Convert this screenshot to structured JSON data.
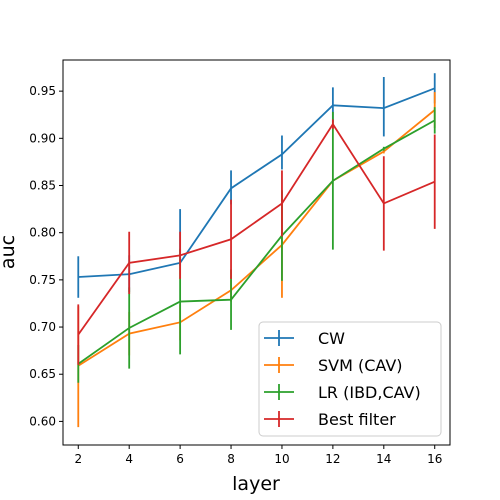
{
  "chart_data": {
    "type": "line",
    "title": "",
    "xlabel": "layer",
    "ylabel": "auc",
    "x": [
      2,
      4,
      6,
      8,
      10,
      12,
      14,
      16
    ],
    "xticks": [
      "2",
      "4",
      "6",
      "8",
      "10",
      "12",
      "14",
      "16"
    ],
    "yticks": [
      "0.60",
      "0.65",
      "0.70",
      "0.75",
      "0.80",
      "0.85",
      "0.90",
      "0.95"
    ],
    "xlim": [
      1.4,
      16.6
    ],
    "ylim": [
      0.575,
      0.983
    ],
    "grid": false,
    "legend_position": "lower-right",
    "error_bars": true,
    "series": [
      {
        "name": "CW",
        "color": "#1f77b4",
        "values": [
          0.753,
          0.756,
          0.768,
          0.847,
          0.883,
          0.935,
          0.932,
          0.953
        ],
        "yerr_low": [
          0.731,
          0.737,
          0.765,
          0.83,
          0.867,
          0.917,
          0.902,
          0.937
        ],
        "yerr_high": [
          0.775,
          0.776,
          0.825,
          0.866,
          0.903,
          0.954,
          0.965,
          0.969
        ]
      },
      {
        "name": "SVM (CAV)",
        "color": "#ff7f0e",
        "values": [
          0.659,
          0.693,
          0.705,
          0.739,
          0.787,
          0.855,
          0.886,
          0.93
        ],
        "yerr_low": [
          0.594,
          0.67,
          0.686,
          0.727,
          0.731,
          0.854,
          0.884,
          0.911
        ],
        "yerr_high": [
          0.722,
          0.716,
          0.724,
          0.75,
          0.843,
          0.857,
          0.888,
          0.949
        ]
      },
      {
        "name": "LR (IBD,CAV)",
        "color": "#2ca02c",
        "values": [
          0.661,
          0.699,
          0.727,
          0.729,
          0.797,
          0.855,
          0.889,
          0.919
        ],
        "yerr_low": [
          0.641,
          0.656,
          0.671,
          0.697,
          0.749,
          0.782,
          0.887,
          0.905
        ],
        "yerr_high": [
          0.681,
          0.742,
          0.783,
          0.761,
          0.845,
          0.928,
          0.891,
          0.933
        ]
      },
      {
        "name": "Best filter",
        "color": "#d62728",
        "values": [
          0.692,
          0.768,
          0.776,
          0.793,
          0.831,
          0.915,
          0.831,
          0.854
        ],
        "yerr_low": [
          0.66,
          0.735,
          0.751,
          0.751,
          0.796,
          0.91,
          0.781,
          0.804
        ],
        "yerr_high": [
          0.724,
          0.801,
          0.801,
          0.835,
          0.866,
          0.92,
          0.881,
          0.904
        ]
      }
    ]
  }
}
